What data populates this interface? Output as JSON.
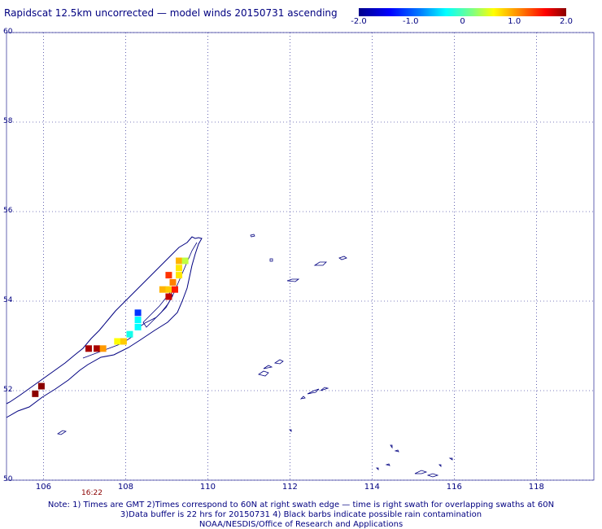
{
  "title": "Rapidscat 12.5km uncorrected — model winds 20150731 ascending",
  "colorbar": {
    "ticks": [
      "-2.0",
      "-1.0",
      "0",
      "1.0",
      "2.0"
    ],
    "range": [
      -2.0,
      2.0
    ]
  },
  "map": {
    "lat_labels": [
      "60",
      "58",
      "56",
      "54",
      "52",
      "50"
    ],
    "lon_labels": [
      "106",
      "108",
      "110",
      "112",
      "114",
      "116",
      "118"
    ],
    "lat_range": [
      50,
      60
    ],
    "lon_range": [
      105.1,
      119.4
    ],
    "grid": "dotted",
    "coastline_color": "#000080"
  },
  "swath_time": "16:22",
  "notes": [
    "Note: 1) Times are GMT 2)Times correspond to 60N at right swath edge — time is right swath for overlapping swaths at 60N",
    "3)Data buffer is 22 hrs for 20150731 4) Black barbs indicate possible rain contamination",
    "NOAA/NESDIS/Office of Research and Applications"
  ],
  "wind_cells": [
    {
      "lon": 105.8,
      "lat": 51.93,
      "v": 2.2
    },
    {
      "lon": 105.95,
      "lat": 52.1,
      "v": 2.2
    },
    {
      "lon": 107.1,
      "lat": 52.94,
      "v": 1.9
    },
    {
      "lon": 107.3,
      "lat": 52.94,
      "v": 1.9
    },
    {
      "lon": 107.45,
      "lat": 52.94,
      "v": 1.0
    },
    {
      "lon": 107.8,
      "lat": 53.1,
      "v": 0.6
    },
    {
      "lon": 107.95,
      "lat": 53.1,
      "v": 0.8
    },
    {
      "lon": 108.1,
      "lat": 53.26,
      "v": -0.5
    },
    {
      "lon": 108.3,
      "lat": 53.42,
      "v": -0.6
    },
    {
      "lon": 108.3,
      "lat": 53.58,
      "v": -0.6
    },
    {
      "lon": 108.3,
      "lat": 53.74,
      "v": -1.3
    },
    {
      "lon": 108.9,
      "lat": 54.26,
      "v": 0.9
    },
    {
      "lon": 109.05,
      "lat": 54.26,
      "v": 0.8
    },
    {
      "lon": 109.05,
      "lat": 54.1,
      "v": 1.8
    },
    {
      "lon": 109.15,
      "lat": 54.42,
      "v": 1.1
    },
    {
      "lon": 109.05,
      "lat": 54.58,
      "v": 1.4
    },
    {
      "lon": 109.2,
      "lat": 54.26,
      "v": 1.5
    },
    {
      "lon": 109.3,
      "lat": 54.58,
      "v": 0.7
    },
    {
      "lon": 109.3,
      "lat": 54.74,
      "v": 0.7
    },
    {
      "lon": 109.3,
      "lat": 54.9,
      "v": 0.9
    },
    {
      "lon": 109.45,
      "lat": 54.9,
      "v": 0.3
    }
  ]
}
